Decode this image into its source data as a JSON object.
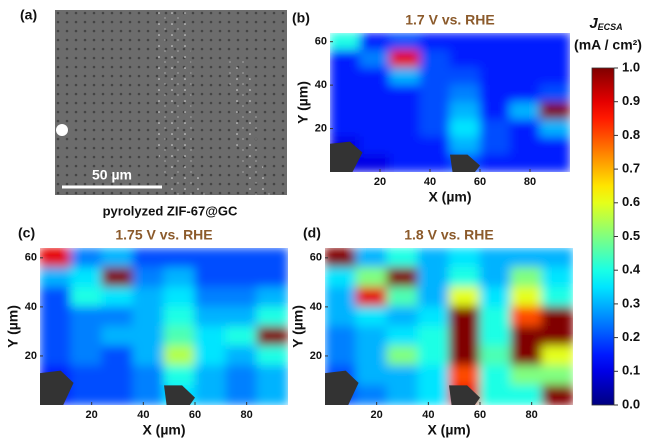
{
  "image_panel": {
    "label": "(a)",
    "scale_bar": "50 µm",
    "caption": "pyrolyzed ZIF-67@GC"
  },
  "colorbar": {
    "title": "J",
    "title_sub": "ECSA",
    "unit": "(mA / cm²)",
    "colormap": "jet",
    "lim": [
      0,
      1
    ],
    "ticks": [
      {
        "value": 0,
        "label": "0.0"
      },
      0.1,
      0.2,
      0.3,
      0.4,
      0.5,
      0.6,
      0.7,
      0.8,
      0.9,
      {
        "value": 1,
        "label": "1.0"
      }
    ]
  },
  "chart_data": [
    {
      "type": "heatmap",
      "label": "(b)",
      "title": "1.7 V vs. RHE",
      "x_label": "X (µm)",
      "y_label": "Y (µm)",
      "x": [
        6,
        18,
        30,
        42,
        54,
        66,
        78,
        90
      ],
      "y": [
        60,
        52,
        44,
        36,
        28,
        20,
        12,
        4
      ],
      "z": [
        [
          0.4,
          0.15,
          0.2,
          0.15,
          0.15,
          0.15,
          0.15,
          0.15
        ],
        [
          0.15,
          0.25,
          0.9,
          0.2,
          0.15,
          0.15,
          0.15,
          0.15
        ],
        [
          0.15,
          0.15,
          0.3,
          0.2,
          0.2,
          0.15,
          0.15,
          0.15
        ],
        [
          0.15,
          0.15,
          0.15,
          0.2,
          0.25,
          0.15,
          0.15,
          0.2
        ],
        [
          0.15,
          0.15,
          0.15,
          0.2,
          0.3,
          0.15,
          0.3,
          1.0
        ],
        [
          0.15,
          0.15,
          0.15,
          0.2,
          0.35,
          0.2,
          0.15,
          0.3
        ],
        [
          0.1,
          0.15,
          0.15,
          0.15,
          0.3,
          0.2,
          0.15,
          0.15
        ],
        [
          0.1,
          0.1,
          0.15,
          0.15,
          0.2,
          0.15,
          0.15,
          0.15
        ]
      ],
      "xlim": [
        0,
        96
      ],
      "ylim": [
        0,
        64
      ],
      "xticks": [
        20,
        40,
        60,
        80
      ],
      "yticks": [
        20,
        40,
        60
      ]
    },
    {
      "type": "heatmap",
      "label": "(c)",
      "title": "1.75 V vs. RHE",
      "x_label": "X (µm)",
      "y_label": "Y (µm)",
      "x": [
        6,
        18,
        30,
        42,
        54,
        66,
        78,
        90
      ],
      "y": [
        60,
        52,
        44,
        36,
        28,
        20,
        12,
        4
      ],
      "z": [
        [
          0.9,
          0.25,
          0.3,
          0.2,
          0.2,
          0.2,
          0.2,
          0.2
        ],
        [
          0.3,
          0.35,
          1.0,
          0.25,
          0.3,
          0.2,
          0.2,
          0.2
        ],
        [
          0.2,
          0.4,
          0.35,
          0.3,
          0.35,
          0.25,
          0.25,
          0.3
        ],
        [
          0.2,
          0.25,
          0.25,
          0.3,
          0.4,
          0.3,
          0.3,
          0.4
        ],
        [
          0.2,
          0.25,
          0.3,
          0.3,
          0.45,
          0.35,
          0.4,
          1.0
        ],
        [
          0.2,
          0.25,
          0.2,
          0.3,
          0.55,
          0.35,
          0.3,
          0.4
        ],
        [
          0.15,
          0.2,
          0.2,
          0.25,
          0.4,
          0.3,
          0.25,
          0.3
        ],
        [
          0.15,
          0.2,
          0.2,
          0.25,
          0.35,
          0.3,
          0.25,
          0.3
        ]
      ],
      "xlim": [
        0,
        96
      ],
      "ylim": [
        0,
        64
      ],
      "xticks": [
        20,
        40,
        60,
        80
      ],
      "yticks": [
        20,
        40,
        60
      ]
    },
    {
      "type": "heatmap",
      "label": "(d)",
      "title": "1.8 V vs. RHE",
      "x_label": "X (µm)",
      "y_label": "Y (µm)",
      "x": [
        6,
        18,
        30,
        42,
        54,
        66,
        78,
        90
      ],
      "y": [
        60,
        52,
        44,
        36,
        28,
        20,
        12,
        4
      ],
      "z": [
        [
          1.0,
          0.3,
          0.4,
          0.3,
          0.35,
          0.3,
          0.3,
          0.3
        ],
        [
          0.35,
          0.5,
          1.0,
          0.3,
          0.4,
          0.3,
          0.5,
          0.35
        ],
        [
          0.3,
          0.9,
          0.45,
          0.3,
          0.6,
          0.35,
          0.6,
          0.4
        ],
        [
          0.3,
          0.35,
          0.3,
          0.35,
          1.0,
          0.4,
          0.8,
          1.0
        ],
        [
          0.25,
          0.3,
          0.35,
          0.4,
          1.0,
          0.4,
          1.0,
          1.0
        ],
        [
          0.25,
          0.3,
          0.5,
          0.4,
          1.0,
          0.45,
          1.0,
          0.6
        ],
        [
          0.2,
          0.3,
          0.3,
          0.35,
          0.8,
          0.4,
          0.5,
          0.5
        ],
        [
          0.2,
          0.25,
          0.3,
          0.35,
          0.9,
          0.4,
          0.4,
          1.0
        ]
      ],
      "xlim": [
        0,
        96
      ],
      "ylim": [
        0,
        64
      ],
      "xticks": [
        20,
        40,
        60,
        80
      ],
      "yticks": [
        20,
        40,
        60
      ]
    }
  ]
}
